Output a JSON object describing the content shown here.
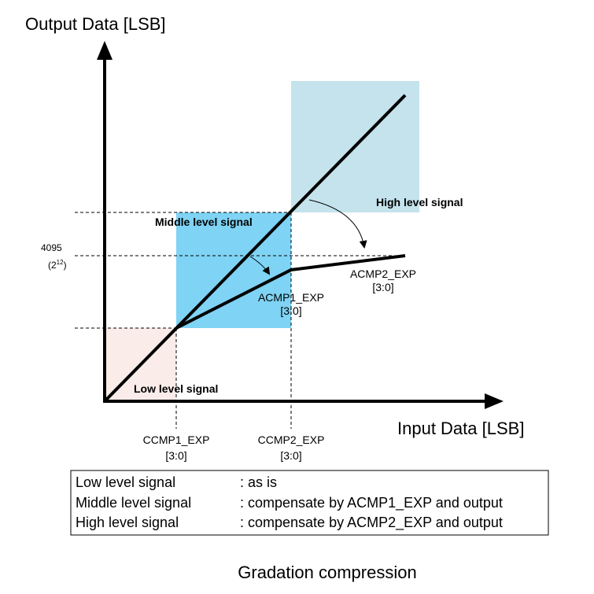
{
  "axes": {
    "y_title": "Output Data [LSB]",
    "x_title": "Input Data [LSB]"
  },
  "regions": {
    "low": "Low level signal",
    "middle": "Middle level signal",
    "high": "High level signal"
  },
  "y_ticks": {
    "value": "4095",
    "power_base": "(2",
    "power_exp": "12",
    "power_close": ")"
  },
  "x_ticks": [
    {
      "name": "CCMP1_EXP",
      "bits": "[3:0]"
    },
    {
      "name": "CCMP2_EXP",
      "bits": "[3:0]"
    }
  ],
  "curve_labels": [
    {
      "name": "ACMP1_EXP",
      "bits": "[3:0]"
    },
    {
      "name": "ACMP2_EXP",
      "bits": "[3:0]"
    }
  ],
  "legend": [
    {
      "label": "Low level signal",
      "desc": ": as is"
    },
    {
      "label": "Middle level signal",
      "desc": ": compensate by ACMP1_EXP and output"
    },
    {
      "label": "High level signal",
      "desc": ": compensate by ACMP2_EXP and output"
    }
  ],
  "caption": "Gradation compression",
  "colors": {
    "low_region": "#f9ece9",
    "middle_region": "#7fd3f4",
    "high_region": "#c4e3ec",
    "line": "#000000"
  }
}
